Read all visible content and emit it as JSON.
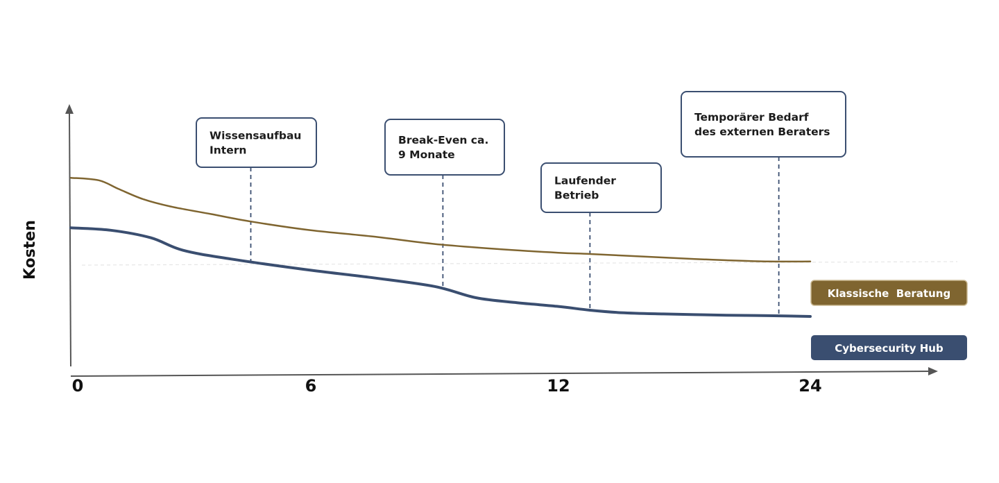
{
  "chart_data": {
    "type": "line",
    "ylabel": "Kosten",
    "xlabel": "",
    "x_ticks": [
      "0",
      "6",
      "12",
      "24"
    ],
    "series": [
      {
        "name": "Klassische  Beratung",
        "color": "#7f6530",
        "points": [
          [
            0,
            0.755
          ],
          [
            0.7,
            0.745
          ],
          [
            1.2,
            0.71
          ],
          [
            1.8,
            0.67
          ],
          [
            2.5,
            0.64
          ],
          [
            3.5,
            0.61
          ],
          [
            4.5,
            0.58
          ],
          [
            6,
            0.545
          ],
          [
            7.5,
            0.52
          ],
          [
            9,
            0.49
          ],
          [
            10.5,
            0.47
          ],
          [
            12,
            0.455
          ],
          [
            13.5,
            0.45
          ],
          [
            16,
            0.44
          ],
          [
            18.5,
            0.43
          ],
          [
            20,
            0.425
          ],
          [
            22,
            0.42
          ],
          [
            24,
            0.42
          ]
        ]
      },
      {
        "name": "Cybersecurity Hub",
        "color": "#3a4e70",
        "points": [
          [
            0,
            0.555
          ],
          [
            1,
            0.545
          ],
          [
            2,
            0.515
          ],
          [
            2.8,
            0.465
          ],
          [
            4,
            0.43
          ],
          [
            6,
            0.385
          ],
          [
            7.5,
            0.355
          ],
          [
            9,
            0.32
          ],
          [
            10,
            0.275
          ],
          [
            11,
            0.255
          ],
          [
            12,
            0.24
          ],
          [
            13.5,
            0.225
          ],
          [
            15,
            0.215
          ],
          [
            17,
            0.21
          ],
          [
            20,
            0.205
          ],
          [
            22,
            0.203
          ],
          [
            24,
            0.2
          ]
        ]
      }
    ],
    "annotations": [
      {
        "lines": [
          "Wissensaufbau",
          "Intern"
        ],
        "x": 4.5
      },
      {
        "lines": [
          "Break-Even ca.",
          "9 Monate"
        ],
        "x": 9.2
      },
      {
        "lines": [
          "Laufender",
          "Betrieb"
        ],
        "x": 13.5
      },
      {
        "lines": [
          "Temporärer Bedarf",
          "des externen Beraters"
        ],
        "x": 22.5
      }
    ],
    "grid": false,
    "legend_placement": "right, at line ends"
  }
}
